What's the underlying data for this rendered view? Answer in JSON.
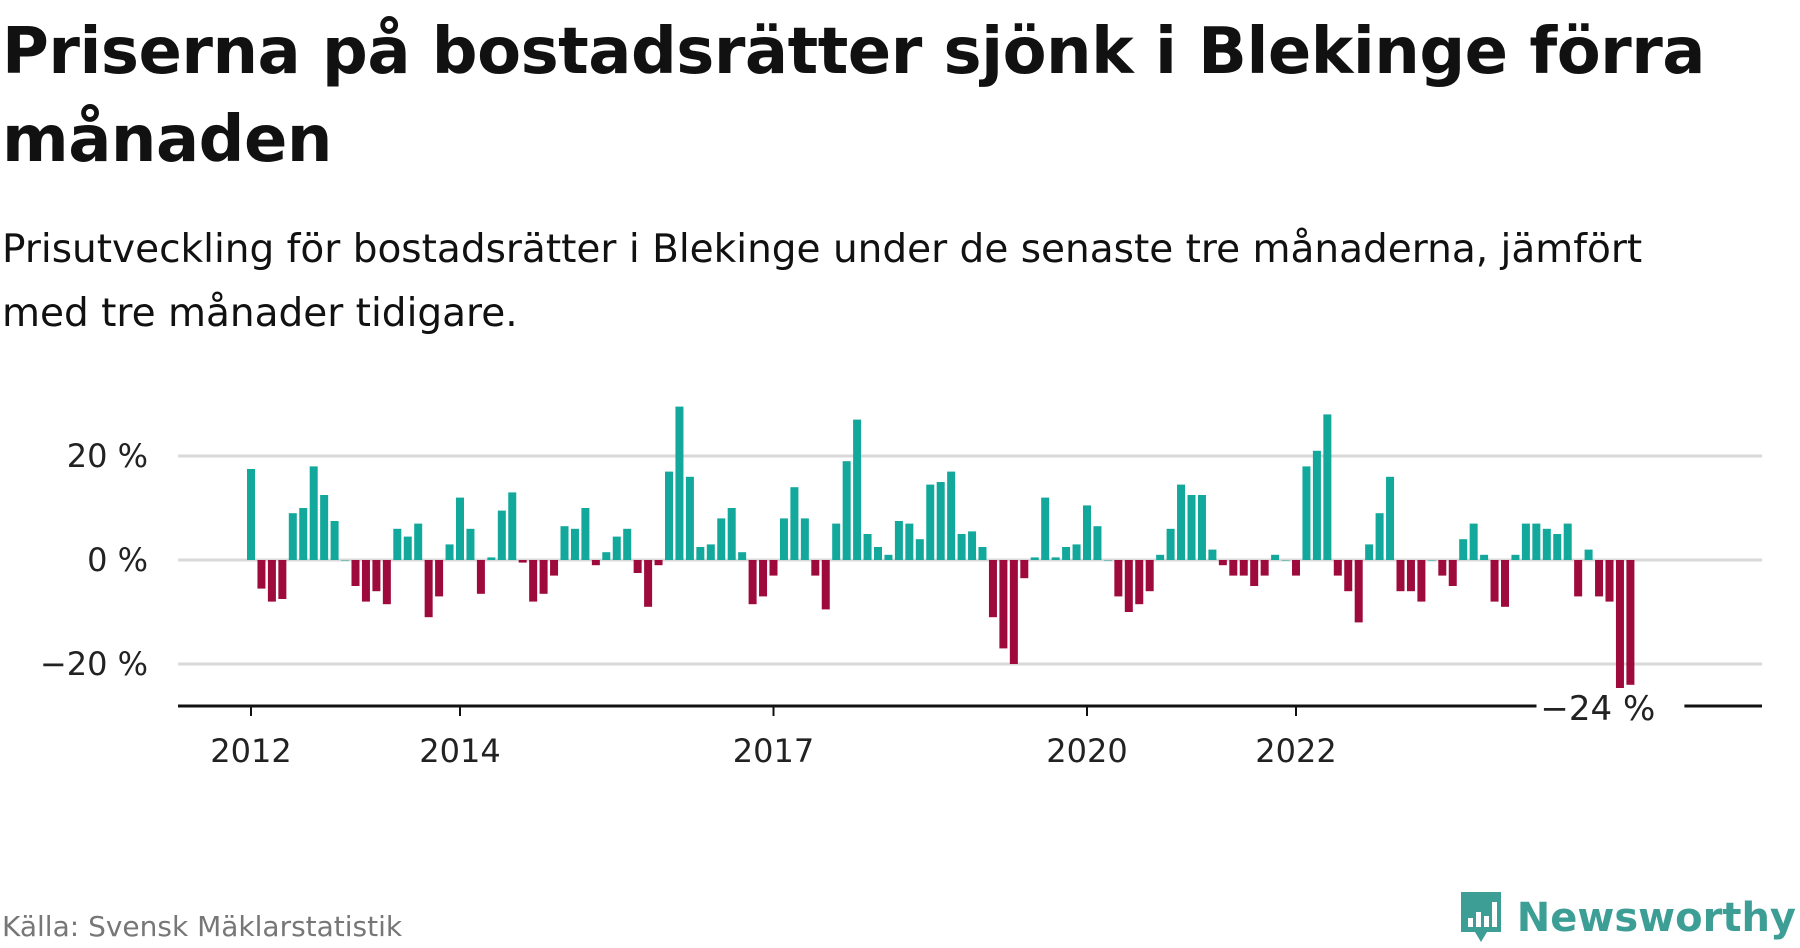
{
  "title": "Priserna på bostadsrätter sjönk i Blekinge förra månaden",
  "subtitle": "Prisutveckling för bostadsrätter i Blekinge under de senaste tre månaderna, jämfört med tre månader tidigare.",
  "source": "Källa: Svensk Mäklarstatistik",
  "brand": {
    "name": "Newsworthy",
    "logo_icon": "bar-chart-icon",
    "color": "#3d9e96"
  },
  "colors": {
    "positive": "#12a89b",
    "negative": "#9e0a3c",
    "grid": "#d9d9d9",
    "axis": "#111111"
  },
  "chart_data": {
    "type": "bar",
    "ylim": [
      -28,
      30
    ],
    "yticks": [
      20,
      0,
      -20
    ],
    "ytick_labels": [
      "20 %",
      "0 %",
      "−20 %"
    ],
    "xtick_labels": [
      {
        "label": "2012",
        "index": 0
      },
      {
        "label": "2014",
        "index": 20
      },
      {
        "label": "2017",
        "index": 50
      },
      {
        "label": "2020",
        "index": 80
      },
      {
        "label": "2022",
        "index": 100
      }
    ],
    "annotation": {
      "text": "−24 %",
      "value": -24
    },
    "values": [
      17.5,
      -5.5,
      -8,
      -7.5,
      9,
      10,
      18,
      12.5,
      7.5,
      0,
      -5,
      -8,
      -6,
      -8.5,
      6,
      4.5,
      7,
      -11,
      -7,
      3,
      12,
      6,
      -6.5,
      0.5,
      9.5,
      13,
      -0.5,
      -8,
      -6.5,
      -3,
      6.5,
      6,
      10,
      -1,
      1.5,
      4.5,
      6,
      -2.5,
      -9,
      -1,
      17,
      29.5,
      16,
      2.5,
      3,
      8,
      10,
      1.5,
      -8.5,
      -7,
      -3,
      8,
      14,
      8,
      -3,
      -9.5,
      7,
      19,
      27,
      5,
      2.5,
      1,
      7.5,
      7,
      4,
      14.5,
      15,
      17,
      5,
      5.5,
      2.5,
      -11,
      -17,
      -20,
      -3.5,
      0.5,
      12,
      0.5,
      2.5,
      3,
      10.5,
      6.5,
      0,
      -7,
      -10,
      -8.5,
      -6,
      1,
      6,
      14.5,
      12.5,
      12.5,
      2,
      -1,
      -3,
      -3,
      -5,
      -3,
      1,
      0,
      -3,
      18,
      21,
      28,
      -3,
      -6,
      -12,
      3,
      9,
      16,
      -6,
      -6,
      -8,
      0,
      -3,
      -5,
      4,
      7,
      1,
      -8,
      -9,
      1,
      7,
      7,
      6,
      5,
      7,
      -7,
      2,
      -7,
      -8,
      -25,
      -24
    ]
  }
}
